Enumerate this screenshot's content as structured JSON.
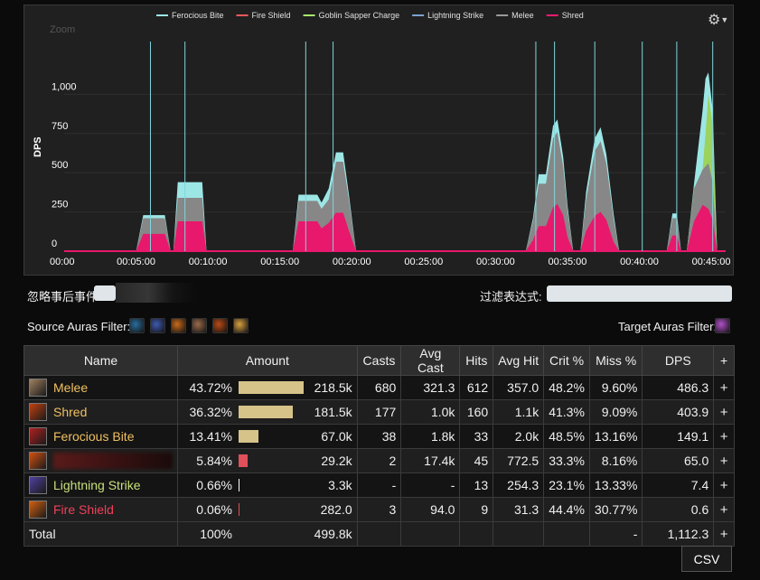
{
  "chart": {
    "legend": [
      {
        "name": "Ferocious Bite",
        "color": "#9de6e6"
      },
      {
        "name": "Fire Shield",
        "color": "#ff5a5a"
      },
      {
        "name": "Goblin Sapper Charge",
        "color": "#a6e86a"
      },
      {
        "name": "Lightning Strike",
        "color": "#7aa3d0"
      },
      {
        "name": "Melee",
        "color": "#9a9a9a"
      },
      {
        "name": "Shred",
        "color": "#f01a6f"
      }
    ],
    "zoom_label": "Zoom",
    "ylabel": "DPS",
    "y_ticks": [
      "0",
      "250",
      "500",
      "750",
      "1,000"
    ],
    "x_ticks": [
      "00:00",
      "00:05:00",
      "00:10:00",
      "00:15:00",
      "00:20:00",
      "00:25:00",
      "00:30:00",
      "00:35:00",
      "00:40:00",
      "00:45:00"
    ]
  },
  "chart_data": {
    "type": "area",
    "title": "",
    "xlabel": "",
    "ylabel": "DPS",
    "x_unit": "minutes",
    "xlim": [
      0,
      46
    ],
    "ylim": [
      0,
      1250
    ],
    "event_markers_min": [
      6.0,
      8.4,
      16.8,
      18.7,
      32.8,
      34.1,
      36.9,
      40.2,
      42.6,
      45.1
    ],
    "series": [
      {
        "name": "Shred",
        "points": [
          [
            0,
            0
          ],
          [
            5.0,
            0
          ],
          [
            5.5,
            110
          ],
          [
            7.0,
            110
          ],
          [
            7.4,
            0
          ],
          [
            7.6,
            0
          ],
          [
            7.9,
            190
          ],
          [
            9.6,
            190
          ],
          [
            9.9,
            0
          ],
          [
            15.9,
            0
          ],
          [
            16.3,
            190
          ],
          [
            17.6,
            190
          ],
          [
            17.9,
            145
          ],
          [
            18.4,
            180
          ],
          [
            18.9,
            245
          ],
          [
            19.4,
            245
          ],
          [
            19.8,
            130
          ],
          [
            20.3,
            0
          ],
          [
            32.1,
            0
          ],
          [
            32.6,
            70
          ],
          [
            33.0,
            160
          ],
          [
            33.5,
            160
          ],
          [
            34.0,
            280
          ],
          [
            34.3,
            300
          ],
          [
            34.7,
            230
          ],
          [
            35.0,
            90
          ],
          [
            35.4,
            0
          ],
          [
            35.9,
            0
          ],
          [
            36.3,
            130
          ],
          [
            36.9,
            225
          ],
          [
            37.3,
            250
          ],
          [
            37.7,
            200
          ],
          [
            38.2,
            60
          ],
          [
            38.6,
            0
          ],
          [
            41.9,
            0
          ],
          [
            42.3,
            100
          ],
          [
            42.6,
            100
          ],
          [
            42.9,
            0
          ],
          [
            43.3,
            0
          ],
          [
            43.8,
            190
          ],
          [
            44.4,
            295
          ],
          [
            44.8,
            270
          ],
          [
            45.1,
            200
          ],
          [
            45.4,
            0
          ]
        ]
      },
      {
        "name": "Melee",
        "points": [
          [
            0,
            0
          ],
          [
            5.0,
            0
          ],
          [
            5.5,
            210
          ],
          [
            7.0,
            210
          ],
          [
            7.4,
            0
          ],
          [
            7.6,
            0
          ],
          [
            7.9,
            340
          ],
          [
            9.6,
            340
          ],
          [
            9.9,
            0
          ],
          [
            15.9,
            0
          ],
          [
            16.3,
            320
          ],
          [
            17.6,
            320
          ],
          [
            17.9,
            270
          ],
          [
            18.4,
            330
          ],
          [
            18.9,
            570
          ],
          [
            19.4,
            570
          ],
          [
            19.8,
            330
          ],
          [
            20.3,
            0
          ],
          [
            32.1,
            0
          ],
          [
            32.6,
            190
          ],
          [
            33.0,
            430
          ],
          [
            33.5,
            430
          ],
          [
            34.0,
            720
          ],
          [
            34.3,
            760
          ],
          [
            34.7,
            540
          ],
          [
            35.0,
            260
          ],
          [
            35.4,
            0
          ],
          [
            35.9,
            0
          ],
          [
            36.3,
            330
          ],
          [
            36.9,
            640
          ],
          [
            37.3,
            700
          ],
          [
            37.7,
            560
          ],
          [
            38.2,
            210
          ],
          [
            38.6,
            0
          ],
          [
            41.9,
            0
          ],
          [
            42.3,
            210
          ],
          [
            42.6,
            210
          ],
          [
            42.9,
            0
          ],
          [
            43.3,
            0
          ],
          [
            43.8,
            400
          ],
          [
            44.4,
            520
          ],
          [
            44.8,
            560
          ],
          [
            45.1,
            440
          ],
          [
            45.4,
            0
          ]
        ]
      },
      {
        "name": "Goblin Sapper Charge",
        "points": [
          [
            0,
            0
          ],
          [
            43.3,
            0
          ],
          [
            43.8,
            400
          ],
          [
            44.4,
            520
          ],
          [
            44.6,
            750
          ],
          [
            44.8,
            1000
          ],
          [
            45.1,
            800
          ],
          [
            45.4,
            0
          ]
        ]
      },
      {
        "name": "Ferocious Bite",
        "points": [
          [
            0,
            0
          ],
          [
            5.0,
            0
          ],
          [
            5.5,
            230
          ],
          [
            7.0,
            230
          ],
          [
            7.4,
            0
          ],
          [
            7.6,
            0
          ],
          [
            7.9,
            440
          ],
          [
            9.6,
            440
          ],
          [
            9.9,
            0
          ],
          [
            15.9,
            0
          ],
          [
            16.3,
            360
          ],
          [
            17.6,
            360
          ],
          [
            17.9,
            310
          ],
          [
            18.4,
            400
          ],
          [
            18.9,
            630
          ],
          [
            19.4,
            630
          ],
          [
            19.8,
            360
          ],
          [
            20.3,
            0
          ],
          [
            32.1,
            0
          ],
          [
            32.6,
            210
          ],
          [
            33.0,
            490
          ],
          [
            33.5,
            490
          ],
          [
            34.0,
            800
          ],
          [
            34.3,
            840
          ],
          [
            34.7,
            600
          ],
          [
            35.0,
            290
          ],
          [
            35.4,
            0
          ],
          [
            35.9,
            0
          ],
          [
            36.3,
            380
          ],
          [
            36.9,
            720
          ],
          [
            37.3,
            790
          ],
          [
            37.7,
            620
          ],
          [
            38.2,
            240
          ],
          [
            38.6,
            0
          ],
          [
            41.9,
            0
          ],
          [
            42.3,
            240
          ],
          [
            42.6,
            240
          ],
          [
            42.9,
            0
          ],
          [
            43.3,
            0
          ],
          [
            43.8,
            430
          ],
          [
            44.4,
            900
          ],
          [
            44.6,
            1100
          ],
          [
            44.8,
            1140
          ],
          [
            45.1,
            900
          ],
          [
            45.4,
            0
          ]
        ]
      }
    ]
  },
  "filters": {
    "ignore_label": "忽略事后事件",
    "filter_expr_label": "过滤表达式:",
    "filter_expr_value": "",
    "source_auras_label": "Source Auras Filter:",
    "target_auras_label": "Target Auras Filter:",
    "source_auras": [
      {
        "icon": "feral-spirit-icon",
        "color": "#2a6d9c"
      },
      {
        "icon": "rune-icon",
        "color": "#3e5ab0"
      },
      {
        "icon": "fire-aura-icon",
        "color": "#c86a1a"
      },
      {
        "icon": "warrior-face-icon",
        "color": "#9a6a4a"
      },
      {
        "icon": "demon-horns-icon",
        "color": "#b84a16"
      },
      {
        "icon": "flame-swirl-icon",
        "color": "#d8a040"
      }
    ],
    "target_aura": {
      "icon": "arcane-burst-icon",
      "color": "#b050c8"
    }
  },
  "table": {
    "headers": [
      "Name",
      "Amount",
      "Casts",
      "Avg Cast",
      "Hits",
      "Avg Hit",
      "Crit %",
      "Miss %",
      "DPS",
      "+"
    ],
    "rows": [
      {
        "name": "Melee",
        "name_color": "#f0c060",
        "icon": "claw-icon",
        "icon_color": "#a08060",
        "pct": "43.72%",
        "bar_pct": 43.72,
        "bar_color": "#d6c38a",
        "amount": "218.5k",
        "casts": "680",
        "avg_cast": "321.3",
        "hits": "612",
        "avg_hit": "357.0",
        "crit": "48.2%",
        "miss": "9.60%",
        "dps": "486.3",
        "plus": "+"
      },
      {
        "name": "Shred",
        "name_color": "#f0c060",
        "icon": "shred-icon",
        "icon_color": "#c04010",
        "pct": "36.32%",
        "bar_pct": 36.32,
        "bar_color": "#d6c38a",
        "amount": "181.5k",
        "casts": "177",
        "avg_cast": "1.0k",
        "hits": "160",
        "avg_hit": "1.1k",
        "crit": "41.3%",
        "miss": "9.09%",
        "dps": "403.9",
        "plus": "+"
      },
      {
        "name": "Ferocious Bite",
        "name_color": "#f0c060",
        "icon": "bite-icon",
        "icon_color": "#b02020",
        "pct": "13.41%",
        "bar_pct": 13.41,
        "bar_color": "#d6c38a",
        "amount": "67.0k",
        "casts": "38",
        "avg_cast": "1.8k",
        "hits": "33",
        "avg_hit": "2.0k",
        "crit": "48.5%",
        "miss": "13.16%",
        "dps": "149.1",
        "plus": "+"
      },
      {
        "name": "",
        "name_color": "#f0c060",
        "icon": "explosion-icon",
        "icon_color": "#d05010",
        "pct": "5.84%",
        "bar_pct": 5.84,
        "bar_color": "#e0505a",
        "amount": "29.2k",
        "casts": "2",
        "avg_cast": "17.4k",
        "hits": "45",
        "avg_hit": "772.5",
        "crit": "33.3%",
        "miss": "8.16%",
        "dps": "65.0",
        "plus": "+"
      },
      {
        "name": "Lightning Strike",
        "name_color": "#c8e07a",
        "icon": "lightning-icon",
        "icon_color": "#5040a0",
        "pct": "0.66%",
        "bar_pct": 0.66,
        "bar_color": "#ffffff",
        "amount": "3.3k",
        "casts": "-",
        "avg_cast": "-",
        "hits": "13",
        "avg_hit": "254.3",
        "crit": "23.1%",
        "miss": "13.33%",
        "dps": "7.4",
        "plus": "+"
      },
      {
        "name": "Fire Shield",
        "name_color": "#f0405a",
        "icon": "fire-shield-icon",
        "icon_color": "#d06010",
        "pct": "0.06%",
        "bar_pct": 0.06,
        "bar_color": "#e0505a",
        "amount": "282.0",
        "casts": "3",
        "avg_cast": "94.0",
        "hits": "9",
        "avg_hit": "31.3",
        "crit": "44.4%",
        "miss": "30.77%",
        "dps": "0.6",
        "plus": "+"
      }
    ],
    "total": {
      "label": "Total",
      "pct": "100%",
      "amount": "499.8k",
      "miss": "-",
      "dps": "1,112.3",
      "plus": "+"
    }
  },
  "csv_label": "CSV"
}
